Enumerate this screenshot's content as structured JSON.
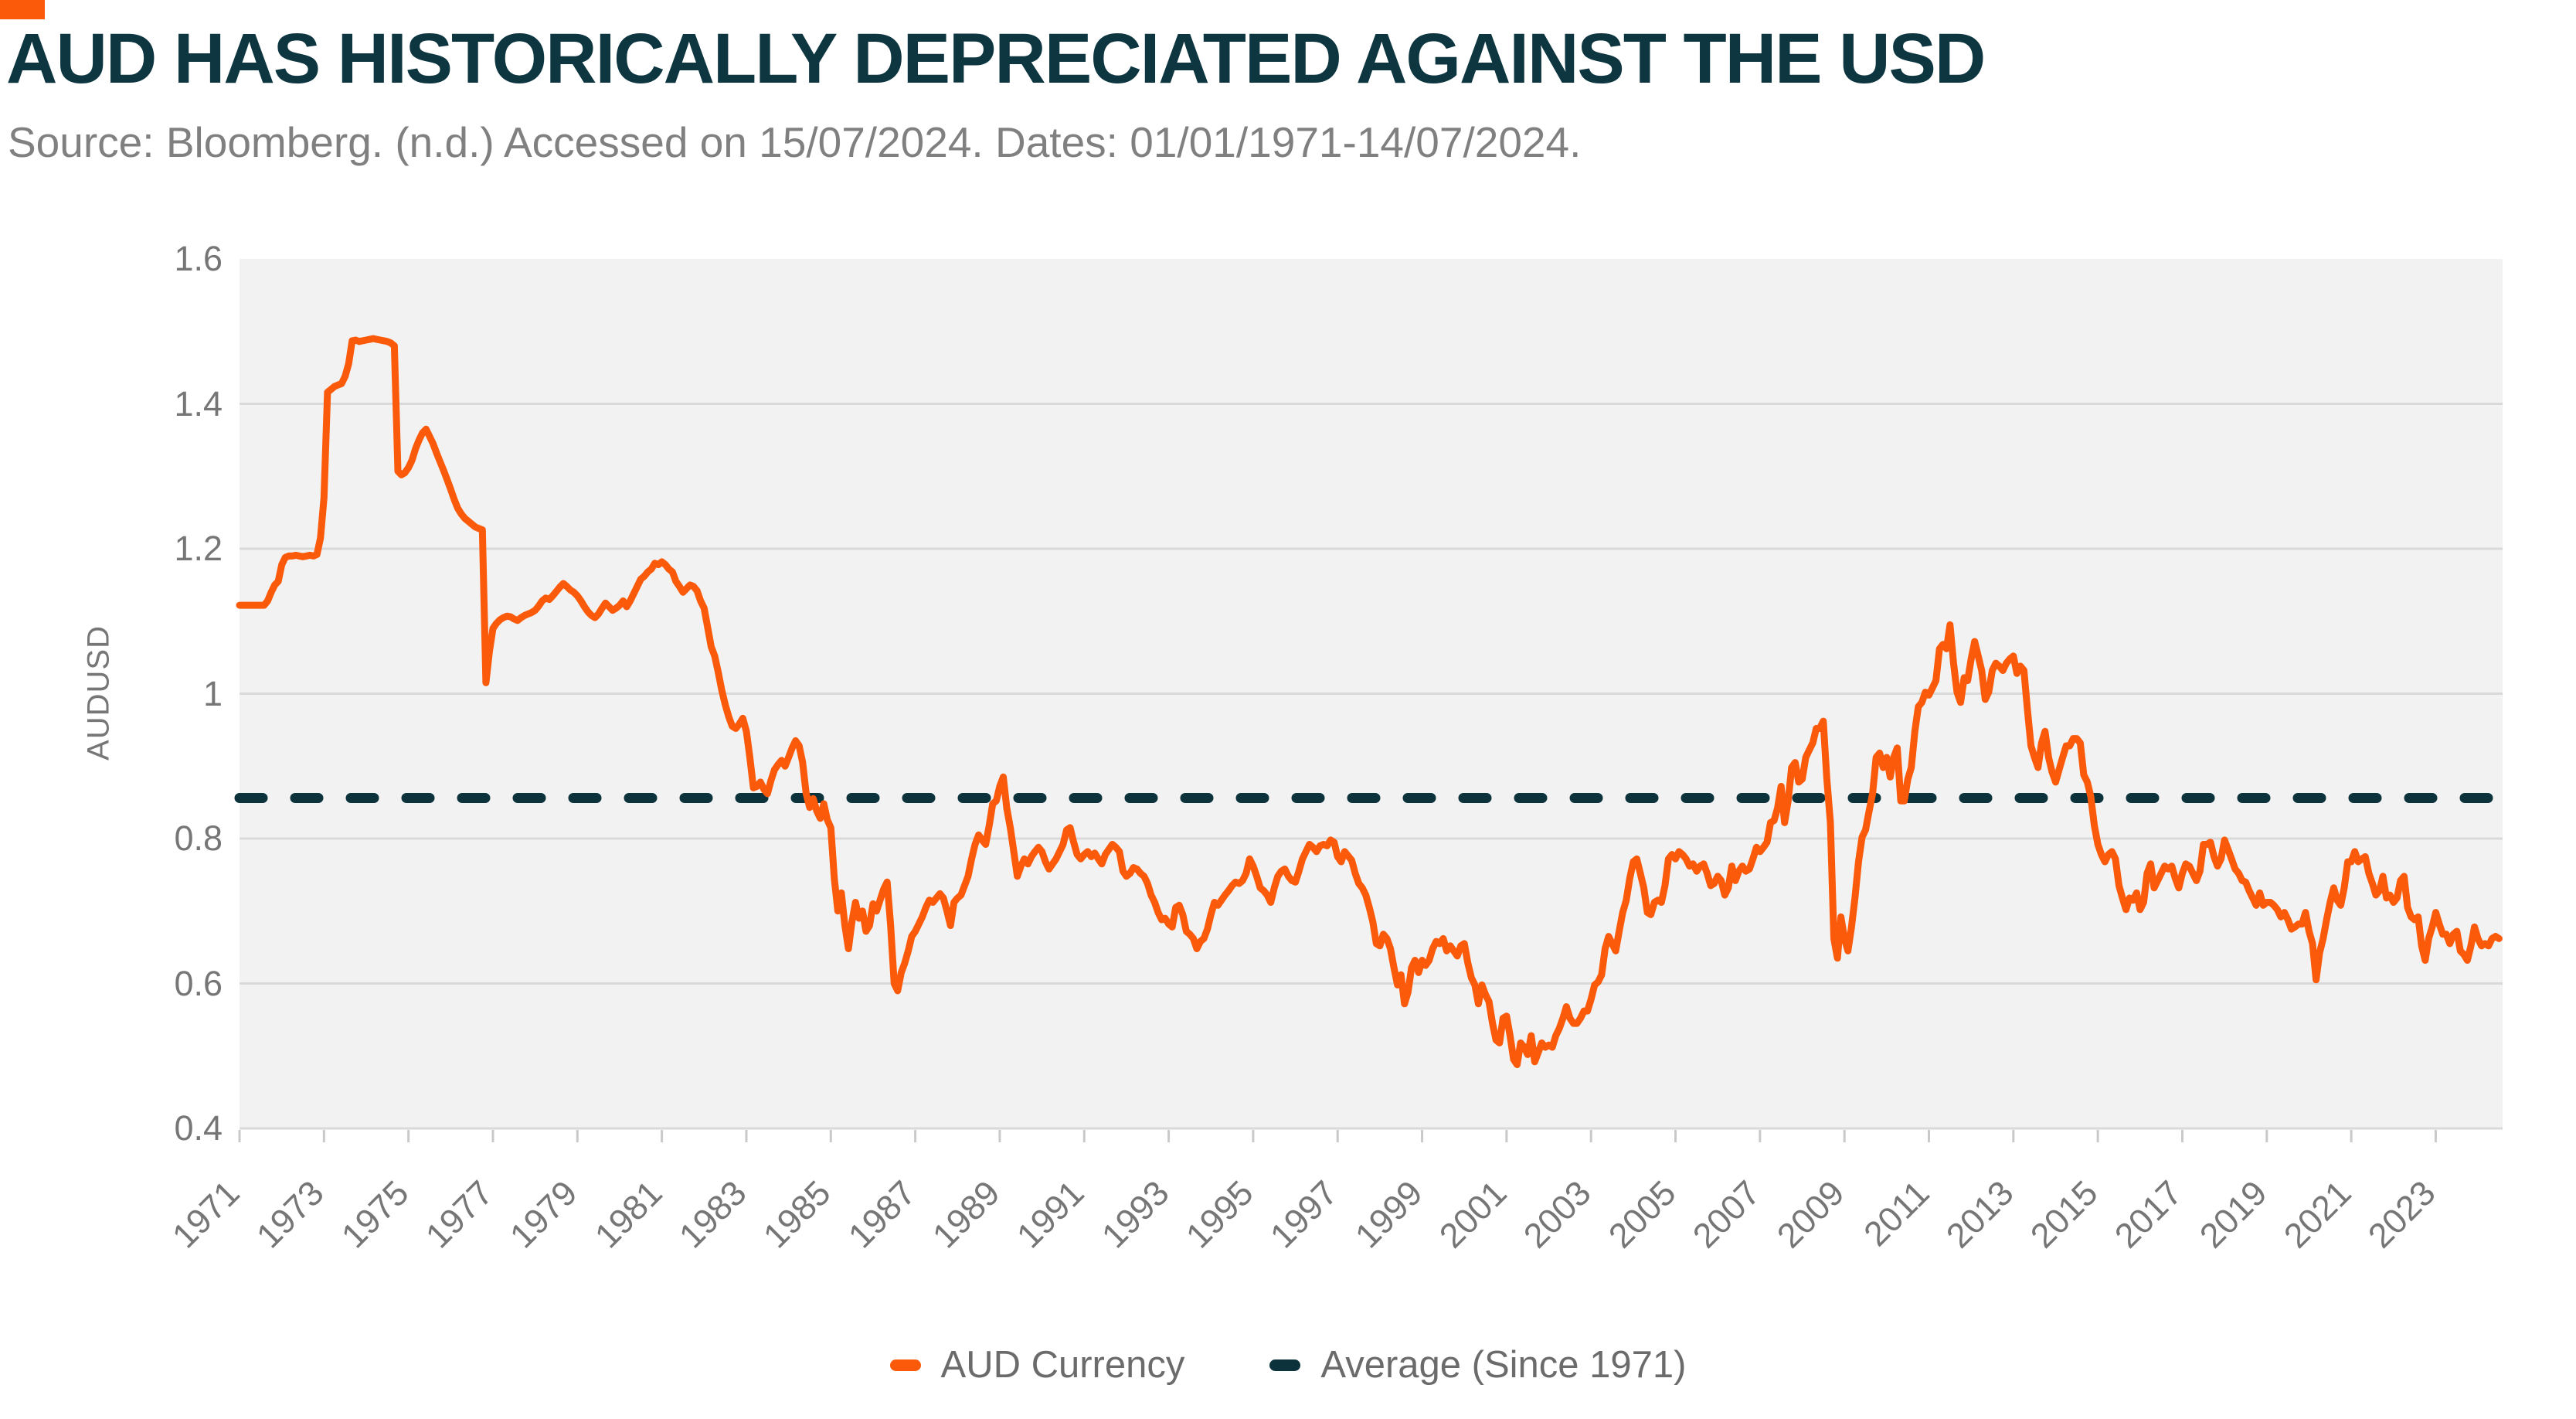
{
  "header": {
    "title": "AUD HAS HISTORICALLY DEPRECIATED AGAINST THE USD",
    "source": "Source: Bloomberg. (n.d.) Accessed on 15/07/2024. Dates: 01/01/1971-14/07/2024."
  },
  "colors": {
    "accent_orange": "#FA5A0A",
    "dark_teal": "#0C333C",
    "title_text": "#0D3640",
    "source_text": "#808080",
    "axis_text": "#767676",
    "legend_text": "#6B6B6B",
    "plot_background": "#F2F2F2",
    "gridline": "#D9D9D9",
    "tick_mark": "#C9C9C9",
    "page_background": "#FFFFFF"
  },
  "legend": {
    "items": [
      {
        "label": "AUD Currency",
        "color": "#FA5A0A"
      },
      {
        "label": "Average (Since 1971)",
        "color": "#0C333C"
      }
    ]
  },
  "chart_data": {
    "type": "line",
    "title": "AUD HAS HISTORICALLY DEPRECIATED AGAINST THE USD",
    "xlabel": "",
    "ylabel": "AUDUSD",
    "ylim": [
      0.4,
      1.6
    ],
    "yticks": [
      {
        "label": "1.6",
        "value": 1.6
      },
      {
        "label": "1.4",
        "value": 1.4
      },
      {
        "label": "1.2",
        "value": 1.2
      },
      {
        "label": "1",
        "value": 1.0
      },
      {
        "label": "0.8",
        "value": 0.8
      },
      {
        "label": "0.6",
        "value": 0.6
      },
      {
        "label": "0.4",
        "value": 0.4
      }
    ],
    "xticks": [
      1971,
      1973,
      1975,
      1977,
      1979,
      1981,
      1983,
      1985,
      1987,
      1989,
      1991,
      1993,
      1995,
      1997,
      1999,
      2001,
      2003,
      2005,
      2007,
      2009,
      2011,
      2013,
      2015,
      2017,
      2019,
      2021,
      2023
    ],
    "grid": "horizontal",
    "legend_position": "bottom-center",
    "x_start": 1971.0,
    "x_end": 2024.5833,
    "x_step_years": 0.0833333,
    "series": [
      {
        "name": "AUD Currency",
        "color": "#FA5A0A",
        "style": "solid",
        "monthly_values": [
          1.122,
          1.122,
          1.122,
          1.122,
          1.122,
          1.122,
          1.122,
          1.122,
          1.128,
          1.14,
          1.15,
          1.155,
          1.178,
          1.188,
          1.19,
          1.19,
          1.191,
          1.19,
          1.189,
          1.19,
          1.191,
          1.19,
          1.192,
          1.215,
          1.27,
          1.416,
          1.42,
          1.424,
          1.426,
          1.428,
          1.438,
          1.455,
          1.487,
          1.488,
          1.486,
          1.487,
          1.488,
          1.489,
          1.49,
          1.489,
          1.488,
          1.487,
          1.486,
          1.484,
          1.48,
          1.307,
          1.302,
          1.305,
          1.312,
          1.322,
          1.338,
          1.35,
          1.36,
          1.365,
          1.355,
          1.345,
          1.332,
          1.32,
          1.308,
          1.295,
          1.282,
          1.268,
          1.256,
          1.248,
          1.242,
          1.238,
          1.234,
          1.23,
          1.228,
          1.226,
          1.015,
          1.058,
          1.09,
          1.097,
          1.102,
          1.105,
          1.107,
          1.106,
          1.103,
          1.101,
          1.105,
          1.108,
          1.11,
          1.112,
          1.115,
          1.121,
          1.128,
          1.132,
          1.13,
          1.135,
          1.141,
          1.147,
          1.152,
          1.148,
          1.143,
          1.14,
          1.135,
          1.128,
          1.12,
          1.113,
          1.108,
          1.105,
          1.11,
          1.118,
          1.125,
          1.12,
          1.115,
          1.118,
          1.122,
          1.128,
          1.12,
          1.128,
          1.138,
          1.148,
          1.158,
          1.162,
          1.168,
          1.172,
          1.18,
          1.178,
          1.182,
          1.178,
          1.172,
          1.168,
          1.155,
          1.148,
          1.14,
          1.145,
          1.15,
          1.148,
          1.142,
          1.128,
          1.118,
          1.092,
          1.065,
          1.052,
          1.03,
          1.005,
          0.985,
          0.968,
          0.955,
          0.952,
          0.958,
          0.966,
          0.948,
          0.912,
          0.87,
          0.872,
          0.878,
          0.868,
          0.862,
          0.88,
          0.895,
          0.902,
          0.908,
          0.9,
          0.912,
          0.925,
          0.935,
          0.928,
          0.905,
          0.862,
          0.843,
          0.855,
          0.838,
          0.828,
          0.848,
          0.826,
          0.815,
          0.745,
          0.7,
          0.725,
          0.68,
          0.648,
          0.685,
          0.712,
          0.69,
          0.7,
          0.672,
          0.68,
          0.71,
          0.7,
          0.715,
          0.73,
          0.74,
          0.68,
          0.6,
          0.59,
          0.615,
          0.628,
          0.645,
          0.665,
          0.672,
          0.682,
          0.692,
          0.705,
          0.715,
          0.712,
          0.718,
          0.724,
          0.718,
          0.7,
          0.68,
          0.712,
          0.718,
          0.722,
          0.735,
          0.748,
          0.772,
          0.792,
          0.805,
          0.798,
          0.792,
          0.818,
          0.848,
          0.852,
          0.872,
          0.885,
          0.842,
          0.815,
          0.782,
          0.748,
          0.762,
          0.772,
          0.765,
          0.775,
          0.782,
          0.788,
          0.782,
          0.768,
          0.758,
          0.765,
          0.772,
          0.782,
          0.792,
          0.812,
          0.815,
          0.795,
          0.778,
          0.772,
          0.778,
          0.782,
          0.775,
          0.78,
          0.772,
          0.765,
          0.778,
          0.785,
          0.792,
          0.788,
          0.782,
          0.755,
          0.748,
          0.752,
          0.76,
          0.758,
          0.752,
          0.748,
          0.738,
          0.722,
          0.712,
          0.698,
          0.688,
          0.69,
          0.682,
          0.678,
          0.705,
          0.708,
          0.695,
          0.672,
          0.668,
          0.662,
          0.648,
          0.658,
          0.662,
          0.675,
          0.695,
          0.712,
          0.708,
          0.715,
          0.722,
          0.728,
          0.735,
          0.74,
          0.738,
          0.742,
          0.752,
          0.772,
          0.762,
          0.748,
          0.732,
          0.728,
          0.722,
          0.712,
          0.732,
          0.748,
          0.755,
          0.758,
          0.748,
          0.742,
          0.74,
          0.755,
          0.772,
          0.782,
          0.792,
          0.788,
          0.782,
          0.79,
          0.792,
          0.79,
          0.798,
          0.795,
          0.775,
          0.768,
          0.782,
          0.776,
          0.77,
          0.752,
          0.738,
          0.732,
          0.722,
          0.705,
          0.685,
          0.655,
          0.652,
          0.668,
          0.662,
          0.648,
          0.622,
          0.598,
          0.612,
          0.572,
          0.588,
          0.622,
          0.632,
          0.615,
          0.632,
          0.625,
          0.632,
          0.648,
          0.658,
          0.655,
          0.662,
          0.645,
          0.652,
          0.645,
          0.638,
          0.652,
          0.655,
          0.628,
          0.608,
          0.598,
          0.572,
          0.598,
          0.585,
          0.575,
          0.545,
          0.522,
          0.518,
          0.552,
          0.555,
          0.528,
          0.495,
          0.488,
          0.518,
          0.512,
          0.502,
          0.528,
          0.492,
          0.505,
          0.518,
          0.512,
          0.515,
          0.512,
          0.528,
          0.538,
          0.552,
          0.568,
          0.552,
          0.545,
          0.545,
          0.552,
          0.562,
          0.562,
          0.578,
          0.598,
          0.602,
          0.612,
          0.648,
          0.665,
          0.655,
          0.645,
          0.672,
          0.698,
          0.715,
          0.745,
          0.768,
          0.772,
          0.752,
          0.732,
          0.698,
          0.695,
          0.712,
          0.715,
          0.712,
          0.735,
          0.772,
          0.778,
          0.772,
          0.782,
          0.778,
          0.772,
          0.762,
          0.765,
          0.755,
          0.762,
          0.765,
          0.752,
          0.735,
          0.738,
          0.748,
          0.742,
          0.722,
          0.732,
          0.762,
          0.742,
          0.755,
          0.762,
          0.755,
          0.758,
          0.772,
          0.788,
          0.782,
          0.788,
          0.795,
          0.822,
          0.825,
          0.842,
          0.872,
          0.822,
          0.852,
          0.898,
          0.905,
          0.878,
          0.882,
          0.912,
          0.922,
          0.932,
          0.952,
          0.952,
          0.962,
          0.882,
          0.822,
          0.662,
          0.635,
          0.692,
          0.662,
          0.645,
          0.678,
          0.718,
          0.768,
          0.802,
          0.812,
          0.838,
          0.862,
          0.912,
          0.918,
          0.898,
          0.912,
          0.885,
          0.912,
          0.925,
          0.852,
          0.852,
          0.882,
          0.898,
          0.948,
          0.982,
          0.988,
          1.002,
          0.998,
          1.008,
          1.018,
          1.062,
          1.068,
          1.062,
          1.095,
          1.042,
          1.002,
          0.988,
          1.022,
          1.018,
          1.048,
          1.072,
          1.052,
          1.032,
          0.992,
          1.002,
          1.032,
          1.042,
          1.038,
          1.032,
          1.042,
          1.048,
          1.052,
          1.028,
          1.038,
          1.032,
          0.978,
          0.928,
          0.912,
          0.898,
          0.932,
          0.948,
          0.912,
          0.892,
          0.878,
          0.895,
          0.912,
          0.928,
          0.928,
          0.938,
          0.938,
          0.932,
          0.888,
          0.878,
          0.858,
          0.818,
          0.792,
          0.778,
          0.768,
          0.778,
          0.782,
          0.772,
          0.735,
          0.718,
          0.702,
          0.718,
          0.715,
          0.725,
          0.702,
          0.712,
          0.752,
          0.765,
          0.732,
          0.742,
          0.752,
          0.762,
          0.758,
          0.762,
          0.745,
          0.732,
          0.752,
          0.765,
          0.762,
          0.752,
          0.742,
          0.755,
          0.792,
          0.792,
          0.795,
          0.775,
          0.762,
          0.772,
          0.798,
          0.785,
          0.772,
          0.758,
          0.752,
          0.742,
          0.74,
          0.728,
          0.718,
          0.708,
          0.725,
          0.708,
          0.712,
          0.712,
          0.708,
          0.702,
          0.692,
          0.698,
          0.688,
          0.675,
          0.678,
          0.682,
          0.682,
          0.698,
          0.672,
          0.655,
          0.605,
          0.642,
          0.662,
          0.688,
          0.712,
          0.732,
          0.715,
          0.708,
          0.732,
          0.768,
          0.768,
          0.782,
          0.768,
          0.772,
          0.775,
          0.752,
          0.738,
          0.722,
          0.728,
          0.748,
          0.718,
          0.722,
          0.712,
          0.718,
          0.742,
          0.748,
          0.705,
          0.692,
          0.688,
          0.692,
          0.652,
          0.632,
          0.662,
          0.678,
          0.698,
          0.682,
          0.668,
          0.668,
          0.655,
          0.668,
          0.672,
          0.645,
          0.64,
          0.632,
          0.652,
          0.678,
          0.662,
          0.652,
          0.655,
          0.652,
          0.662,
          0.665,
          0.662
        ]
      },
      {
        "name": "Average (Since 1971)",
        "color": "#0C333C",
        "style": "dashed",
        "value": 0.856
      }
    ]
  }
}
